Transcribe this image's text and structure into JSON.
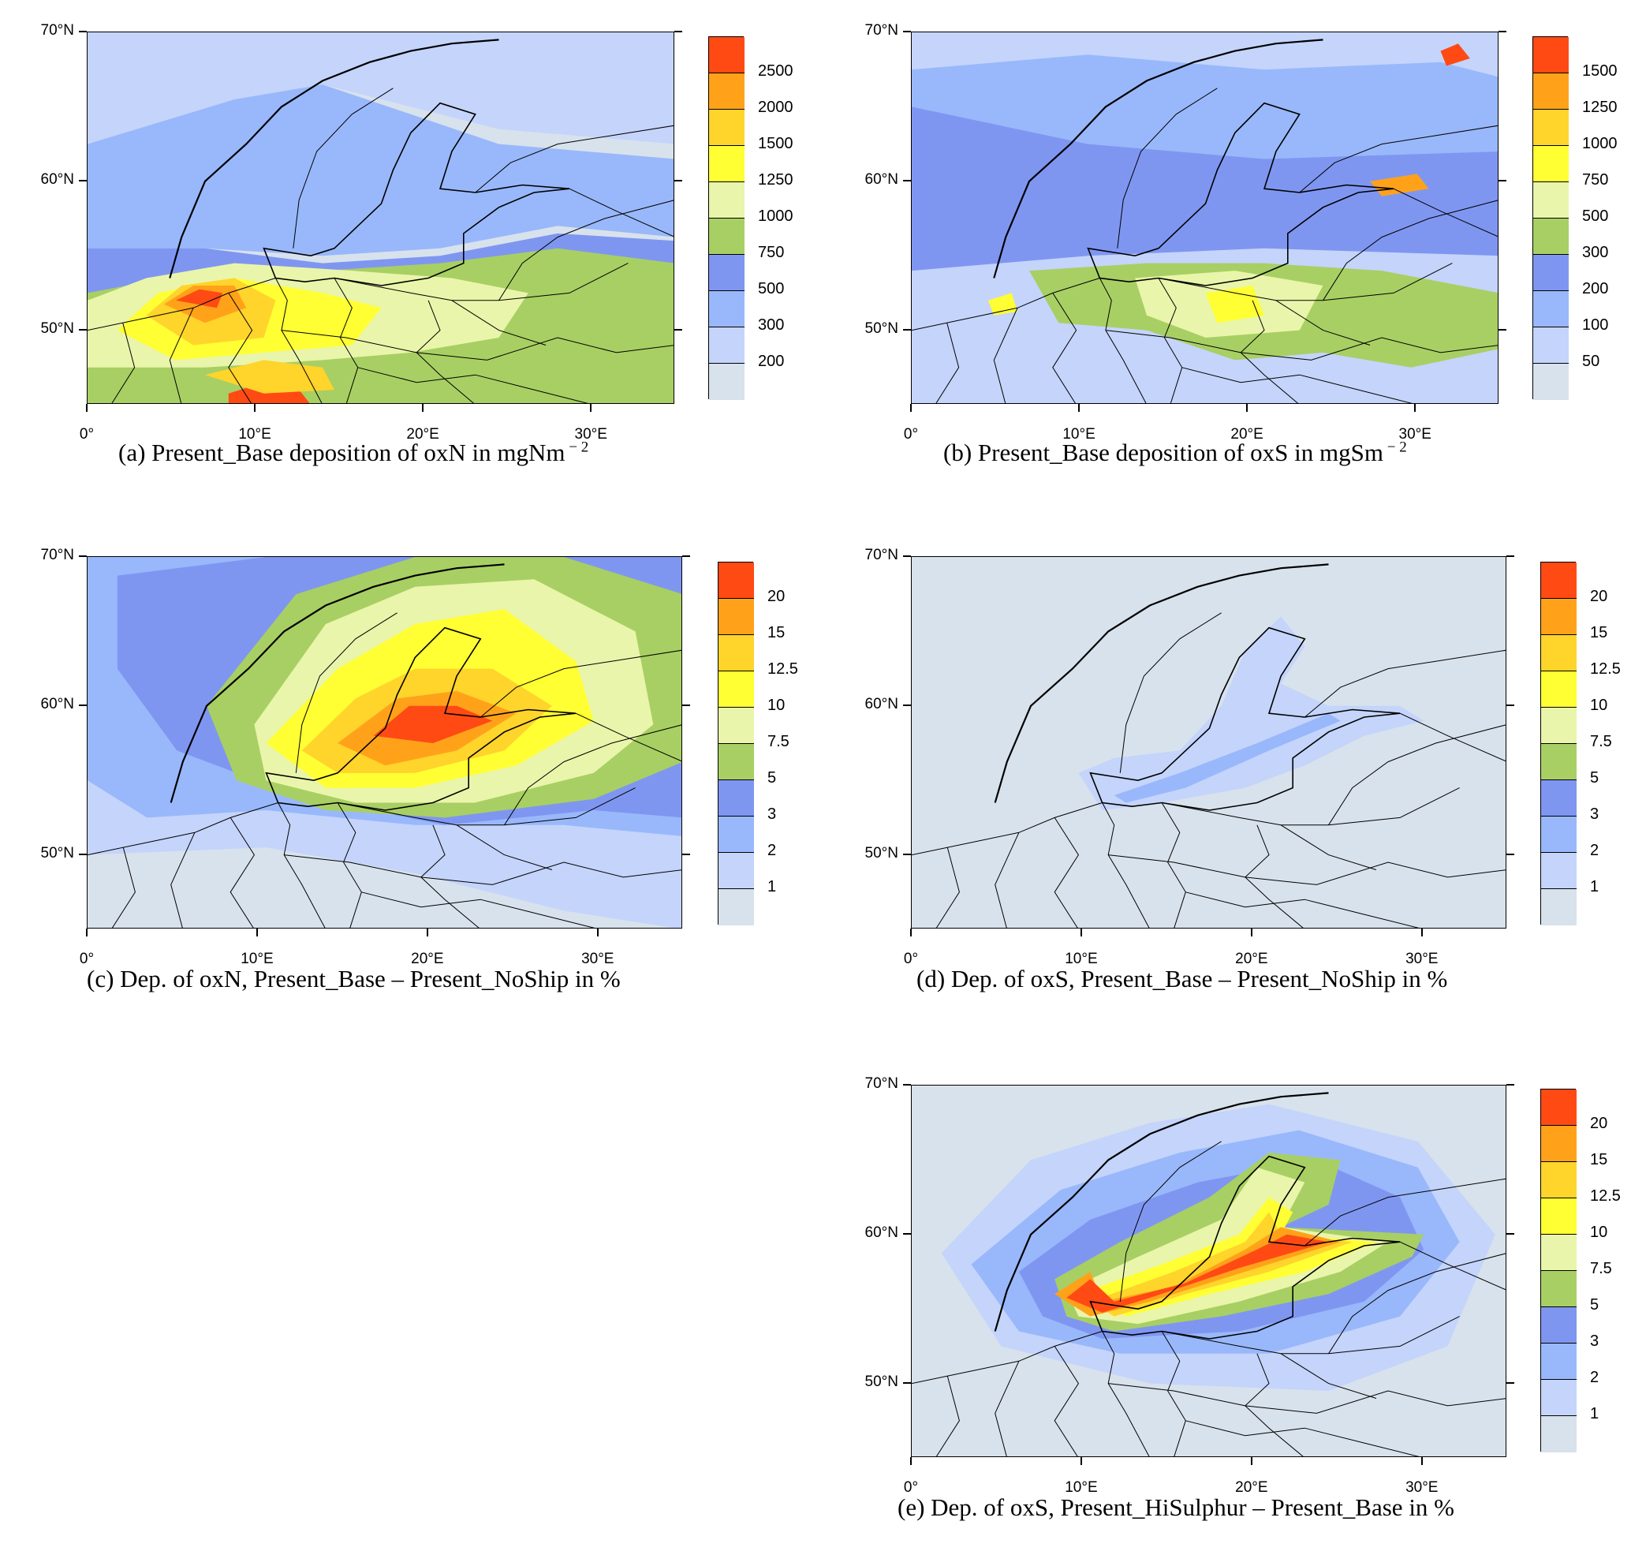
{
  "panels": [
    {
      "id": "a",
      "caption": "(a) Present_Base deposition of oxN in mgNm",
      "caption_sup": "− 2",
      "colorbar": {
        "labels": [
          "2500",
          "2000",
          "1500",
          "1250",
          "1000",
          "750",
          "500",
          "300",
          "200"
        ],
        "colors": [
          "#ff4a14",
          "#ffa21a",
          "#ffd42b",
          "#ffff33",
          "#e9f5aa",
          "#a8cf63",
          "#7f96f1",
          "#99b8fb",
          "#c4d4fb",
          "#d8e2ec"
        ]
      },
      "lat_labels": [
        "70°N",
        "60°N",
        "50°N"
      ],
      "lon_labels": [
        "0°",
        "10°E",
        "20°E",
        "30°E"
      ]
    },
    {
      "id": "b",
      "caption": "(b) Present_Base deposition of oxS in mgSm",
      "caption_sup": "− 2",
      "colorbar": {
        "labels": [
          "1500",
          "1250",
          "1000",
          "750",
          "500",
          "300",
          "200",
          "100",
          "50"
        ],
        "colors": [
          "#ff4a14",
          "#ffa21a",
          "#ffd42b",
          "#ffff33",
          "#e9f5aa",
          "#a8cf63",
          "#7f96f1",
          "#99b8fb",
          "#c4d4fb",
          "#d8e2ec"
        ]
      },
      "lat_labels": [
        "70°N",
        "60°N",
        "50°N"
      ],
      "lon_labels": [
        "0°",
        "10°E",
        "20°E",
        "30°E"
      ]
    },
    {
      "id": "c",
      "caption": "(c) Dep. of oxN, Present_Base – Present_NoShip in %",
      "caption_sup": "",
      "colorbar": {
        "labels": [
          "20",
          "15",
          "12.5",
          "10",
          "7.5",
          "5",
          "3",
          "2",
          "1"
        ],
        "colors": [
          "#ff4a14",
          "#ffa21a",
          "#ffd42b",
          "#ffff33",
          "#e9f5aa",
          "#a8cf63",
          "#7f96f1",
          "#99b8fb",
          "#c4d4fb",
          "#d8e2ec"
        ]
      },
      "lat_labels": [
        "70°N",
        "60°N",
        "50°N"
      ],
      "lon_labels": [
        "0°",
        "10°E",
        "20°E",
        "30°E"
      ]
    },
    {
      "id": "d",
      "caption": "(d) Dep. of oxS, Present_Base – Present_NoShip in %",
      "caption_sup": "",
      "colorbar": {
        "labels": [
          "20",
          "15",
          "12.5",
          "10",
          "7.5",
          "5",
          "3",
          "2",
          "1"
        ],
        "colors": [
          "#ff4a14",
          "#ffa21a",
          "#ffd42b",
          "#ffff33",
          "#e9f5aa",
          "#a8cf63",
          "#7f96f1",
          "#99b8fb",
          "#c4d4fb",
          "#d8e2ec"
        ]
      },
      "lat_labels": [
        "70°N",
        "60°N",
        "50°N"
      ],
      "lon_labels": [
        "0°",
        "10°E",
        "20°E",
        "30°E"
      ]
    },
    {
      "id": "e",
      "caption": "(e) Dep. of oxS, Present_HiSulphur – Present_Base in %",
      "caption_sup": "",
      "colorbar": {
        "labels": [
          "20",
          "15",
          "12.5",
          "10",
          "7.5",
          "5",
          "3",
          "2",
          "1"
        ],
        "colors": [
          "#ff4a14",
          "#ffa21a",
          "#ffd42b",
          "#ffff33",
          "#e9f5aa",
          "#a8cf63",
          "#7f96f1",
          "#99b8fb",
          "#c4d4fb",
          "#d8e2ec"
        ]
      },
      "lat_labels": [
        "70°N",
        "60°N",
        "50°N"
      ],
      "lon_labels": [
        "0°",
        "10°E",
        "20°E",
        "30°E"
      ]
    }
  ]
}
